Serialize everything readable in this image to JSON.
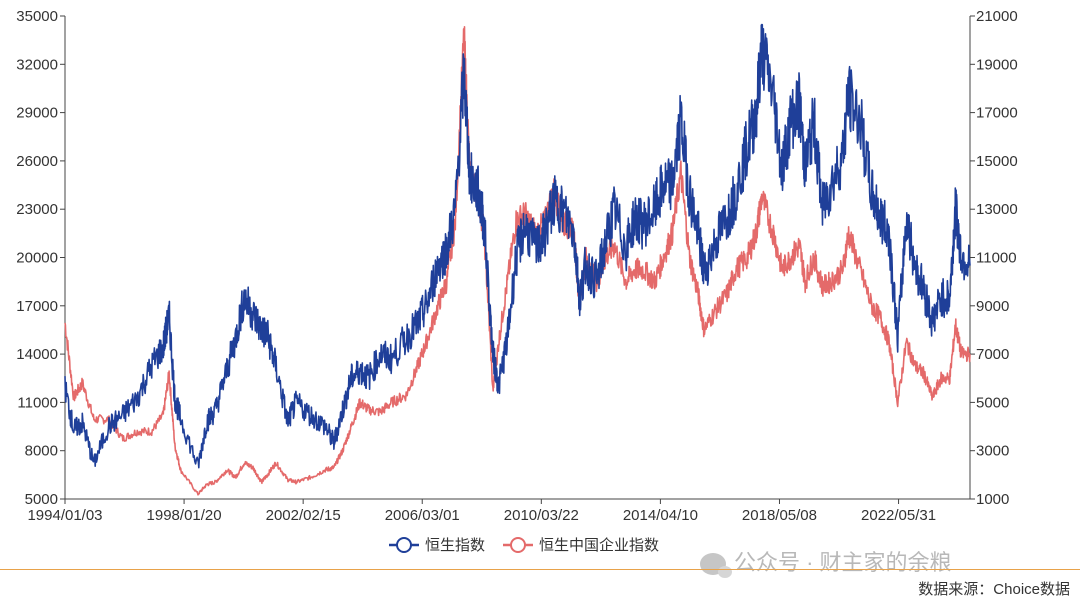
{
  "chart_data": {
    "type": "line",
    "title": "",
    "x_tick_labels": [
      "1994/01/03",
      "1998/01/20",
      "2002/02/15",
      "2006/03/01",
      "2010/03/22",
      "2014/04/10",
      "2018/05/08",
      "2022/05/31"
    ],
    "y_left": {
      "ticks": [
        5000,
        8000,
        11000,
        14000,
        17000,
        20000,
        23000,
        26000,
        29000,
        32000,
        35000
      ],
      "ylim": [
        5000,
        35000
      ]
    },
    "y_right": {
      "ticks": [
        1000,
        3000,
        5000,
        7000,
        9000,
        11000,
        13000,
        15000,
        17000,
        19000,
        21000
      ],
      "ylim": [
        1000,
        21000
      ]
    },
    "xlim": [
      1994.0,
      2025.3
    ],
    "grid": false,
    "legend_position": "bottom",
    "series": [
      {
        "name": "恒生指数",
        "axis": "left",
        "color": "#1f3f99",
        "points": [
          [
            1994.0,
            11900
          ],
          [
            1994.3,
            9300
          ],
          [
            1994.6,
            9700
          ],
          [
            1995.0,
            7200
          ],
          [
            1995.5,
            9500
          ],
          [
            1996.0,
            10200
          ],
          [
            1996.5,
            11300
          ],
          [
            1997.0,
            13300
          ],
          [
            1997.4,
            14500
          ],
          [
            1997.6,
            16400
          ],
          [
            1997.8,
            11200
          ],
          [
            1998.0,
            10000
          ],
          [
            1998.6,
            7000
          ],
          [
            1998.9,
            9800
          ],
          [
            1999.2,
            10500
          ],
          [
            1999.6,
            13000
          ],
          [
            1999.9,
            15000
          ],
          [
            2000.2,
            17500
          ],
          [
            2000.5,
            16500
          ],
          [
            2000.8,
            15500
          ],
          [
            2001.0,
            15200
          ],
          [
            2001.3,
            13200
          ],
          [
            2001.7,
            9800
          ],
          [
            2002.0,
            11000
          ],
          [
            2002.5,
            10200
          ],
          [
            2003.0,
            9500
          ],
          [
            2003.3,
            8500
          ],
          [
            2003.6,
            10500
          ],
          [
            2003.9,
            12500
          ],
          [
            2004.2,
            13000
          ],
          [
            2004.5,
            12500
          ],
          [
            2004.9,
            14000
          ],
          [
            2005.3,
            13700
          ],
          [
            2005.8,
            15000
          ],
          [
            2006.2,
            15900
          ],
          [
            2006.5,
            17000
          ],
          [
            2006.9,
            19500
          ],
          [
            2007.2,
            20500
          ],
          [
            2007.5,
            23000
          ],
          [
            2007.8,
            31500
          ],
          [
            2008.0,
            25000
          ],
          [
            2008.3,
            24000
          ],
          [
            2008.5,
            22000
          ],
          [
            2008.8,
            14000
          ],
          [
            2009.0,
            12000
          ],
          [
            2009.3,
            15000
          ],
          [
            2009.6,
            20000
          ],
          [
            2009.9,
            22000
          ],
          [
            2010.3,
            20500
          ],
          [
            2010.6,
            21500
          ],
          [
            2010.9,
            23500
          ],
          [
            2011.2,
            23000
          ],
          [
            2011.6,
            21500
          ],
          [
            2011.8,
            17500
          ],
          [
            2012.0,
            19500
          ],
          [
            2012.4,
            18500
          ],
          [
            2012.7,
            21000
          ],
          [
            2013.0,
            23000
          ],
          [
            2013.4,
            20500
          ],
          [
            2013.7,
            22500
          ],
          [
            2014.0,
            22000
          ],
          [
            2014.4,
            23000
          ],
          [
            2014.7,
            24500
          ],
          [
            2015.0,
            24500
          ],
          [
            2015.3,
            28500
          ],
          [
            2015.6,
            24000
          ],
          [
            2015.9,
            21500
          ],
          [
            2016.1,
            19000
          ],
          [
            2016.5,
            21000
          ],
          [
            2016.9,
            22500
          ],
          [
            2017.2,
            24000
          ],
          [
            2017.6,
            27000
          ],
          [
            2017.9,
            29000
          ],
          [
            2018.1,
            33000
          ],
          [
            2018.5,
            30000
          ],
          [
            2018.8,
            25500
          ],
          [
            2019.1,
            28500
          ],
          [
            2019.4,
            29500
          ],
          [
            2019.6,
            25500
          ],
          [
            2019.9,
            28500
          ],
          [
            2020.2,
            23000
          ],
          [
            2020.5,
            24500
          ],
          [
            2020.9,
            26500
          ],
          [
            2021.1,
            30000
          ],
          [
            2021.5,
            28500
          ],
          [
            2021.9,
            24000
          ],
          [
            2022.2,
            22500
          ],
          [
            2022.5,
            21500
          ],
          [
            2022.8,
            15000
          ],
          [
            2023.1,
            22500
          ],
          [
            2023.4,
            19500
          ],
          [
            2023.7,
            18000
          ],
          [
            2024.0,
            16000
          ],
          [
            2024.3,
            17500
          ],
          [
            2024.6,
            17500
          ],
          [
            2024.8,
            23000
          ],
          [
            2025.0,
            20000
          ],
          [
            2025.3,
            19500
          ]
        ]
      },
      {
        "name": "恒生中国企业指数",
        "axis": "right",
        "color": "#e46a6a",
        "points": [
          [
            1994.0,
            8300
          ],
          [
            1994.3,
            5200
          ],
          [
            1994.6,
            5800
          ],
          [
            1995.0,
            4300
          ],
          [
            1995.5,
            4300
          ],
          [
            1996.0,
            3500
          ],
          [
            1996.5,
            3800
          ],
          [
            1997.0,
            3800
          ],
          [
            1997.4,
            4500
          ],
          [
            1997.6,
            6200
          ],
          [
            1997.8,
            3200
          ],
          [
            1998.0,
            2200
          ],
          [
            1998.6,
            1200
          ],
          [
            1998.9,
            1600
          ],
          [
            1999.2,
            1700
          ],
          [
            1999.6,
            2200
          ],
          [
            1999.9,
            1900
          ],
          [
            2000.2,
            2500
          ],
          [
            2000.5,
            2300
          ],
          [
            2000.8,
            1700
          ],
          [
            2001.0,
            2000
          ],
          [
            2001.3,
            2500
          ],
          [
            2001.7,
            1800
          ],
          [
            2002.0,
            1700
          ],
          [
            2002.5,
            1900
          ],
          [
            2003.0,
            2200
          ],
          [
            2003.3,
            2300
          ],
          [
            2003.6,
            3000
          ],
          [
            2003.9,
            4000
          ],
          [
            2004.2,
            5000
          ],
          [
            2004.5,
            4700
          ],
          [
            2004.9,
            4600
          ],
          [
            2005.3,
            5000
          ],
          [
            2005.8,
            5300
          ],
          [
            2006.2,
            6500
          ],
          [
            2006.5,
            7500
          ],
          [
            2006.9,
            9000
          ],
          [
            2007.2,
            10000
          ],
          [
            2007.5,
            12500
          ],
          [
            2007.8,
            20200
          ],
          [
            2008.0,
            14500
          ],
          [
            2008.3,
            13500
          ],
          [
            2008.5,
            12000
          ],
          [
            2008.8,
            5500
          ],
          [
            2009.0,
            7500
          ],
          [
            2009.3,
            10000
          ],
          [
            2009.6,
            12500
          ],
          [
            2009.9,
            12800
          ],
          [
            2010.3,
            12000
          ],
          [
            2010.6,
            12500
          ],
          [
            2010.9,
            13800
          ],
          [
            2011.2,
            12500
          ],
          [
            2011.6,
            12000
          ],
          [
            2011.8,
            9000
          ],
          [
            2012.0,
            11000
          ],
          [
            2012.4,
            10000
          ],
          [
            2012.7,
            11000
          ],
          [
            2013.0,
            11500
          ],
          [
            2013.4,
            10000
          ],
          [
            2013.7,
            10500
          ],
          [
            2014.0,
            10500
          ],
          [
            2014.4,
            10000
          ],
          [
            2014.7,
            11000
          ],
          [
            2015.0,
            12000
          ],
          [
            2015.3,
            14500
          ],
          [
            2015.6,
            11000
          ],
          [
            2015.9,
            9500
          ],
          [
            2016.1,
            8000
          ],
          [
            2016.5,
            8800
          ],
          [
            2016.9,
            9500
          ],
          [
            2017.2,
            10500
          ],
          [
            2017.6,
            11000
          ],
          [
            2017.9,
            12000
          ],
          [
            2018.1,
            13500
          ],
          [
            2018.5,
            12000
          ],
          [
            2018.8,
            10500
          ],
          [
            2019.1,
            11000
          ],
          [
            2019.4,
            11500
          ],
          [
            2019.6,
            10000
          ],
          [
            2019.9,
            11000
          ],
          [
            2020.2,
            9800
          ],
          [
            2020.5,
            10000
          ],
          [
            2020.9,
            10500
          ],
          [
            2021.1,
            12000
          ],
          [
            2021.5,
            10500
          ],
          [
            2021.9,
            9000
          ],
          [
            2022.2,
            8500
          ],
          [
            2022.5,
            7500
          ],
          [
            2022.8,
            5000
          ],
          [
            2023.1,
            7500
          ],
          [
            2023.4,
            6500
          ],
          [
            2023.7,
            6200
          ],
          [
            2024.0,
            5200
          ],
          [
            2024.3,
            6000
          ],
          [
            2024.6,
            6000
          ],
          [
            2024.8,
            8200
          ],
          [
            2025.0,
            7000
          ],
          [
            2025.3,
            7000
          ]
        ]
      }
    ]
  },
  "legend": {
    "items": [
      {
        "label": "恒生指数",
        "color": "#1f3f99"
      },
      {
        "label": "恒生中国企业指数",
        "color": "#e46a6a"
      }
    ]
  },
  "watermark": {
    "text": "公众号 · 财主家的余粮"
  },
  "footer": {
    "source": "数据来源：Choice数据"
  }
}
